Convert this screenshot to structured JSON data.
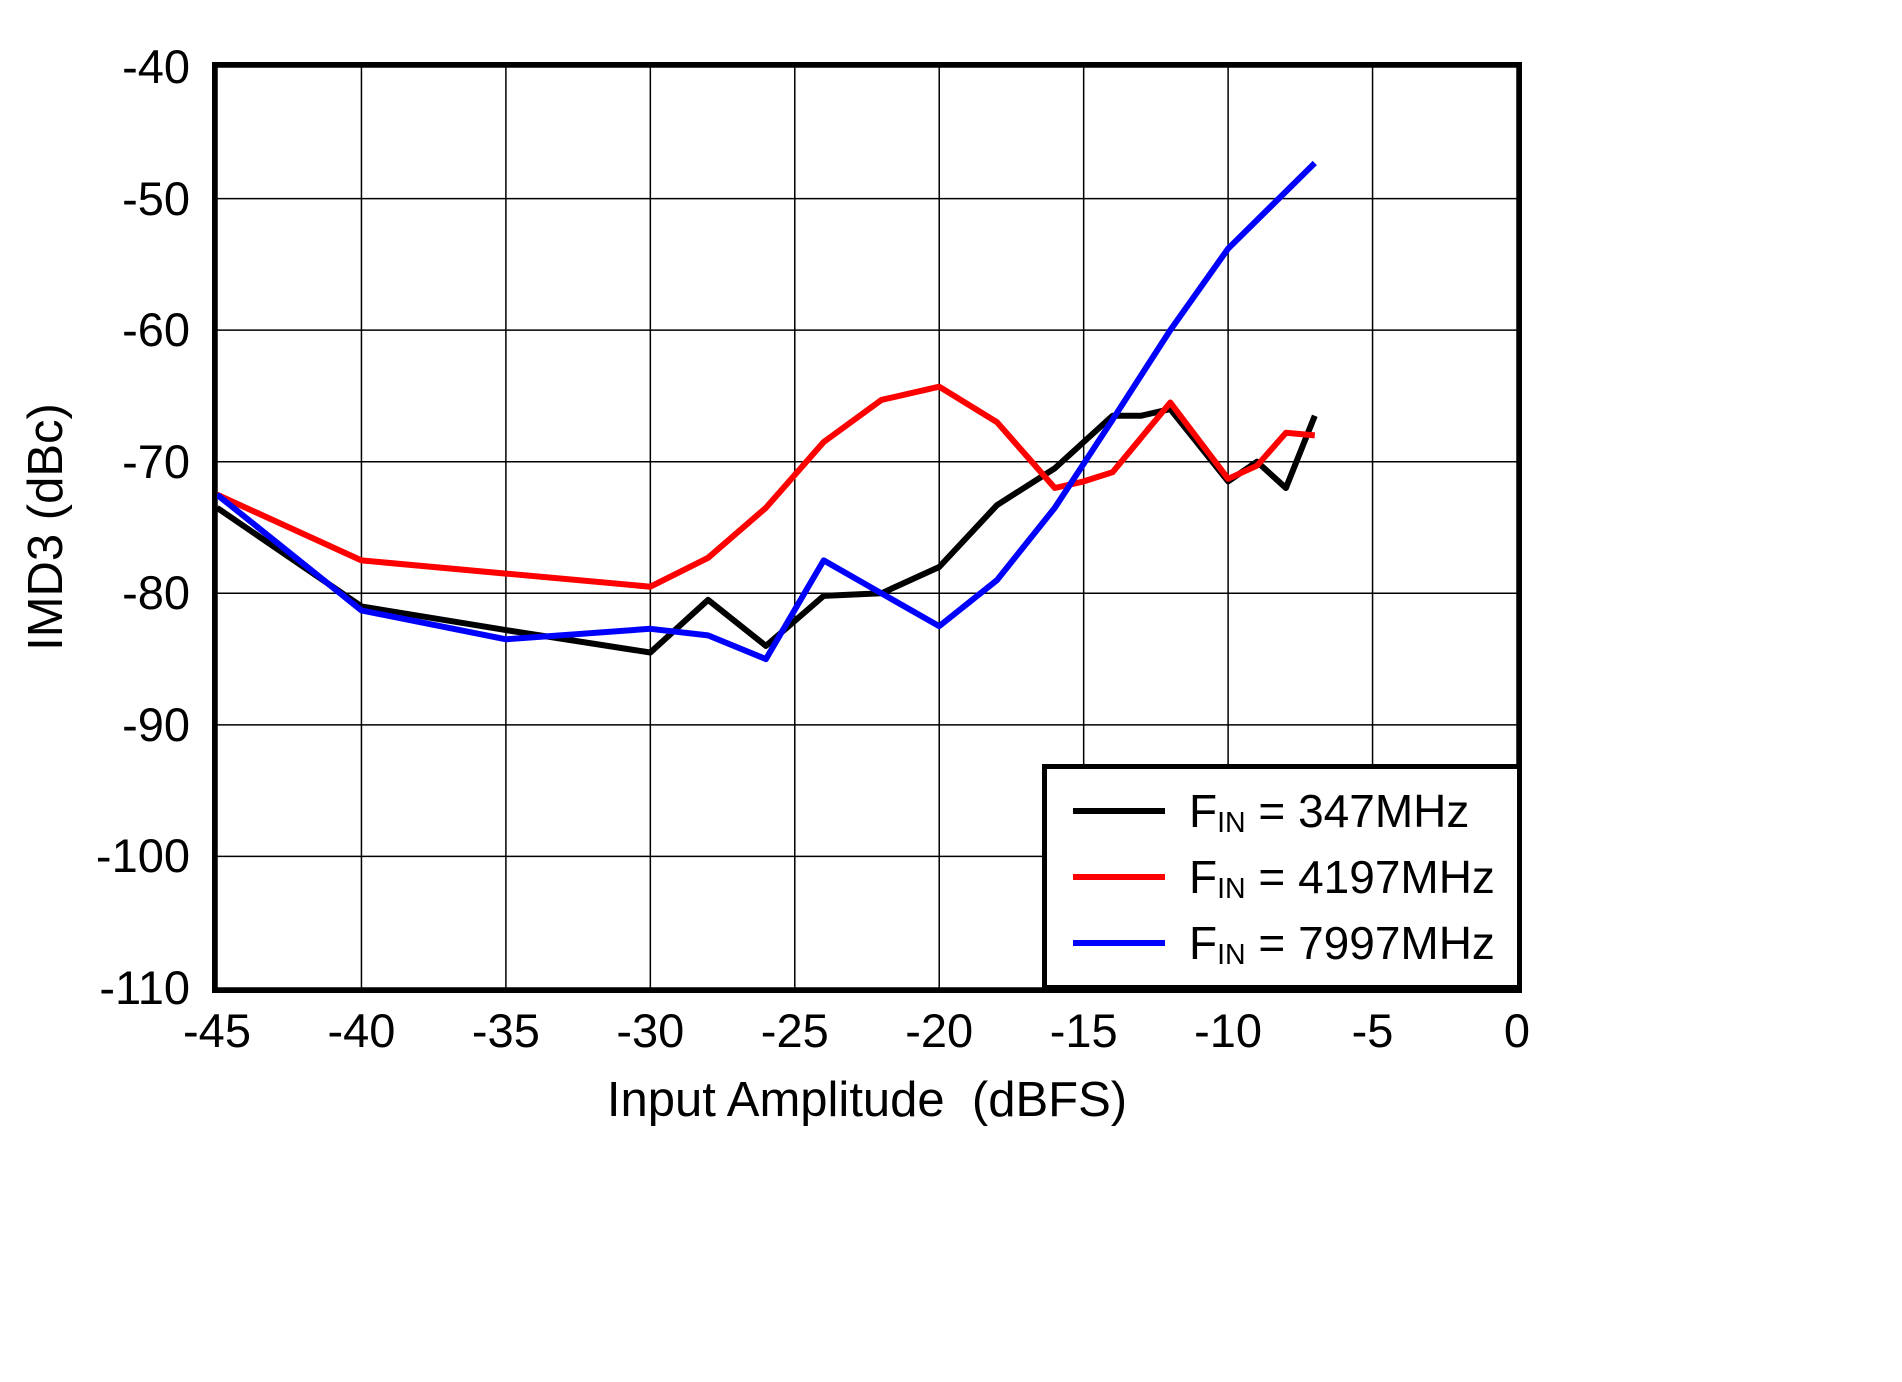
{
  "chart_data": {
    "type": "line",
    "title": "",
    "xlabel": "Input Amplitude  (dBFS)",
    "ylabel": "IMD3 (dBc)",
    "xlim": [
      -45,
      0
    ],
    "ylim": [
      -110,
      -40
    ],
    "xticks": [
      -45,
      -40,
      -35,
      -30,
      -25,
      -20,
      -15,
      -10,
      -5,
      0
    ],
    "yticks": [
      -110,
      -100,
      -90,
      -80,
      -70,
      -60,
      -50,
      -40
    ],
    "grid": true,
    "legend_position": "lower right",
    "series": [
      {
        "id": "fin-347mhz",
        "name": "FIN = 347MHz",
        "color": "#000000",
        "x": [
          -45,
          -40,
          -35,
          -30,
          -28,
          -26,
          -24,
          -22,
          -20,
          -18,
          -16,
          -14,
          -13,
          -12,
          -10,
          -9,
          -8,
          -7
        ],
        "values": [
          -73.5,
          -81,
          -82.8,
          -84.5,
          -80.5,
          -84,
          -80.2,
          -80,
          -78,
          -73.3,
          -70.5,
          -66.5,
          -66.5,
          -66,
          -71.5,
          -70,
          -72,
          -66.5
        ]
      },
      {
        "id": "fin-4197mhz",
        "name": "FIN = 4197MHz",
        "color": "#ff0000",
        "x": [
          -45,
          -40,
          -35,
          -30,
          -28,
          -26,
          -24,
          -22,
          -20,
          -18,
          -16,
          -15,
          -14,
          -12,
          -10,
          -9,
          -8,
          -7
        ],
        "values": [
          -72.5,
          -77.5,
          -78.5,
          -79.5,
          -77.3,
          -73.5,
          -68.5,
          -65.3,
          -64.3,
          -67,
          -72,
          -71.5,
          -70.8,
          -65.5,
          -71.3,
          -70.3,
          -67.8,
          -68
        ]
      },
      {
        "id": "fin-7997mhz",
        "name": "FIN = 7997MHz",
        "color": "#0000ff",
        "x": [
          -45,
          -40,
          -35,
          -30,
          -28,
          -26,
          -24,
          -22,
          -20,
          -18,
          -16,
          -14,
          -12,
          -10,
          -7
        ],
        "values": [
          -72.5,
          -81.3,
          -83.5,
          -82.7,
          -83.2,
          -85,
          -77.5,
          -80,
          -82.5,
          -79,
          -73.5,
          -66.8,
          -60,
          -53.8,
          -47.3
        ]
      }
    ],
    "legend": [
      {
        "f": "F",
        "sub": "IN",
        "rest": " = 347MHz"
      },
      {
        "f": "F",
        "sub": "IN",
        "rest": " = 4197MHz"
      },
      {
        "f": "F",
        "sub": "IN",
        "rest": " = 7997MHz"
      }
    ]
  }
}
